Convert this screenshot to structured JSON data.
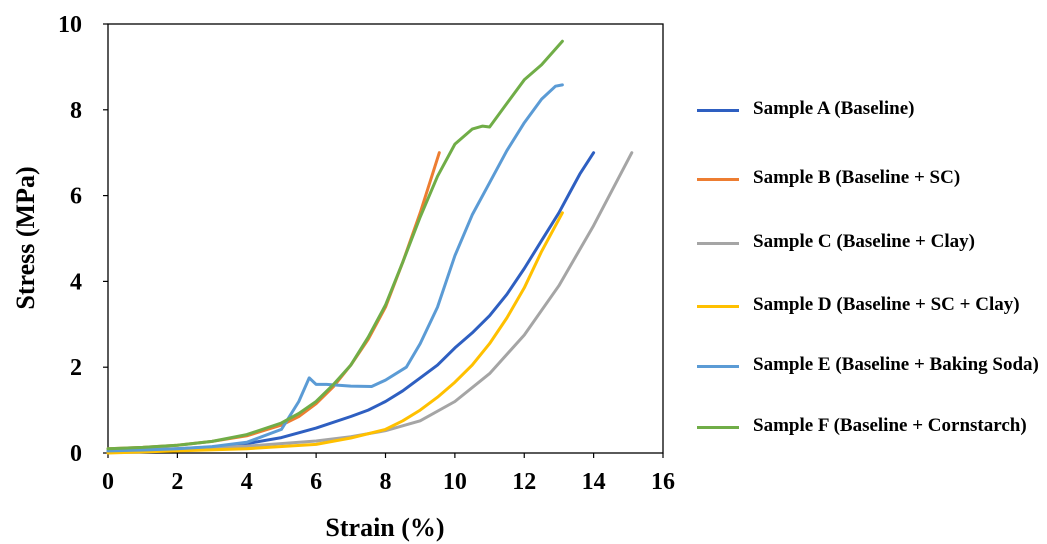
{
  "chart_data": {
    "type": "line",
    "title": "",
    "xlabel": "Strain (%)",
    "ylabel": "Stress (MPa)",
    "xlim": [
      0,
      16
    ],
    "ylim": [
      0,
      10
    ],
    "xticks": [
      "0",
      "2",
      "4",
      "6",
      "8",
      "10",
      "12",
      "14",
      "16"
    ],
    "yticks": [
      "0",
      "2",
      "4",
      "6",
      "8",
      "10"
    ],
    "grid": false,
    "legend_position": "right",
    "series": [
      {
        "name": "Sample A (Baseline)",
        "color": "#2E5FC1",
        "x": [
          0,
          1,
          2,
          3,
          4,
          5,
          6,
          7,
          7.5,
          8,
          8.5,
          9,
          9.5,
          10,
          10.5,
          11,
          11.5,
          12,
          12.5,
          13,
          13.3,
          13.6,
          14.0
        ],
        "y": [
          0.05,
          0.07,
          0.1,
          0.14,
          0.22,
          0.36,
          0.58,
          0.85,
          1.0,
          1.2,
          1.45,
          1.75,
          2.05,
          2.45,
          2.8,
          3.2,
          3.7,
          4.3,
          4.95,
          5.6,
          6.05,
          6.5,
          7.0
        ]
      },
      {
        "name": "Sample B (Baseline + SC)",
        "color": "#ED7D31",
        "x": [
          0,
          1,
          2,
          3,
          4,
          5,
          5.5,
          6,
          6.5,
          7,
          7.5,
          8,
          8.5,
          9,
          9.55
        ],
        "y": [
          0.1,
          0.13,
          0.18,
          0.27,
          0.4,
          0.65,
          0.85,
          1.15,
          1.55,
          2.05,
          2.65,
          3.4,
          4.45,
          5.6,
          7.0
        ]
      },
      {
        "name": "Sample C (Baseline + Clay)",
        "color": "#A5A5A5",
        "x": [
          0,
          2,
          4,
          6,
          7,
          8,
          9,
          10,
          11,
          12,
          13,
          14,
          15.1
        ],
        "y": [
          0.05,
          0.1,
          0.16,
          0.28,
          0.38,
          0.52,
          0.75,
          1.2,
          1.85,
          2.75,
          3.9,
          5.3,
          7.0
        ]
      },
      {
        "name": "Sample D (Baseline + SC + Clay)",
        "color": "#FFC000",
        "x": [
          0,
          2,
          4,
          6,
          7,
          8,
          8.5,
          9,
          9.5,
          10,
          10.5,
          11,
          11.5,
          12,
          12.5,
          13.1
        ],
        "y": [
          0.0,
          0.05,
          0.1,
          0.2,
          0.35,
          0.55,
          0.75,
          1.0,
          1.3,
          1.65,
          2.05,
          2.55,
          3.15,
          3.85,
          4.7,
          5.6
        ]
      },
      {
        "name": "Sample E (Baseline + Baking Soda)",
        "color": "#5B9BD5",
        "x": [
          0,
          1,
          2,
          3,
          4,
          5,
          5.5,
          5.8,
          6.0,
          6.3,
          7.0,
          7.6,
          8.0,
          8.6,
          9.0,
          9.5,
          10.0,
          10.5,
          11.0,
          11.5,
          12.0,
          12.5,
          12.9,
          13.1
        ],
        "y": [
          0.05,
          0.07,
          0.1,
          0.15,
          0.25,
          0.55,
          1.2,
          1.75,
          1.6,
          1.6,
          1.56,
          1.55,
          1.7,
          2.0,
          2.55,
          3.4,
          4.6,
          5.55,
          6.3,
          7.05,
          7.7,
          8.25,
          8.55,
          8.58
        ]
      },
      {
        "name": "Sample F (Baseline + Cornstarch)",
        "color": "#70AD47",
        "x": [
          0,
          1,
          2,
          3,
          4,
          5,
          5.5,
          6,
          6.5,
          7,
          7.5,
          8,
          8.5,
          9,
          9.5,
          10,
          10.5,
          10.8,
          11.0,
          11.5,
          12,
          12.5,
          13.1
        ],
        "y": [
          0.1,
          0.13,
          0.18,
          0.27,
          0.43,
          0.7,
          0.92,
          1.2,
          1.6,
          2.05,
          2.7,
          3.45,
          4.45,
          5.5,
          6.45,
          7.2,
          7.55,
          7.62,
          7.6,
          8.15,
          8.7,
          9.05,
          9.6
        ]
      }
    ]
  }
}
